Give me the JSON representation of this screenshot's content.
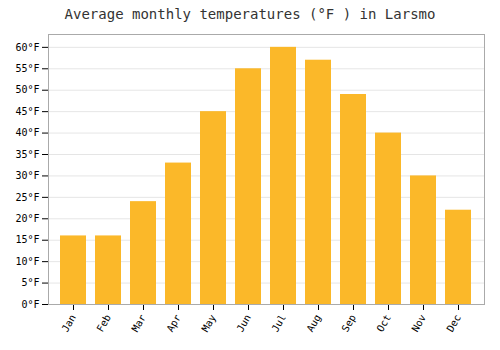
{
  "chart_data": {
    "type": "bar",
    "title": "Average monthly temperatures (°F ) in Larsmo",
    "categories": [
      "Jan",
      "Feb",
      "Mar",
      "Apr",
      "May",
      "Jun",
      "Jul",
      "Aug",
      "Sep",
      "Oct",
      "Nov",
      "Dec"
    ],
    "values": [
      16,
      16,
      24,
      33,
      45,
      55,
      60,
      57,
      49,
      40,
      30,
      22
    ],
    "color": "#FBB829",
    "ylim": [
      0,
      63
    ],
    "yticks": [
      {
        "value": 0,
        "label": "0°F"
      },
      {
        "value": 5,
        "label": "5°F"
      },
      {
        "value": 10,
        "label": "10°F"
      },
      {
        "value": 15,
        "label": "15°F"
      },
      {
        "value": 20,
        "label": "20°F"
      },
      {
        "value": 25,
        "label": "25°F"
      },
      {
        "value": 30,
        "label": "30°F"
      },
      {
        "value": 35,
        "label": "35°F"
      },
      {
        "value": 40,
        "label": "40°F"
      },
      {
        "value": 45,
        "label": "45°F"
      },
      {
        "value": 50,
        "label": "50°F"
      },
      {
        "value": 55,
        "label": "55°F"
      },
      {
        "value": 60,
        "label": "60°F"
      }
    ],
    "grid": true
  }
}
